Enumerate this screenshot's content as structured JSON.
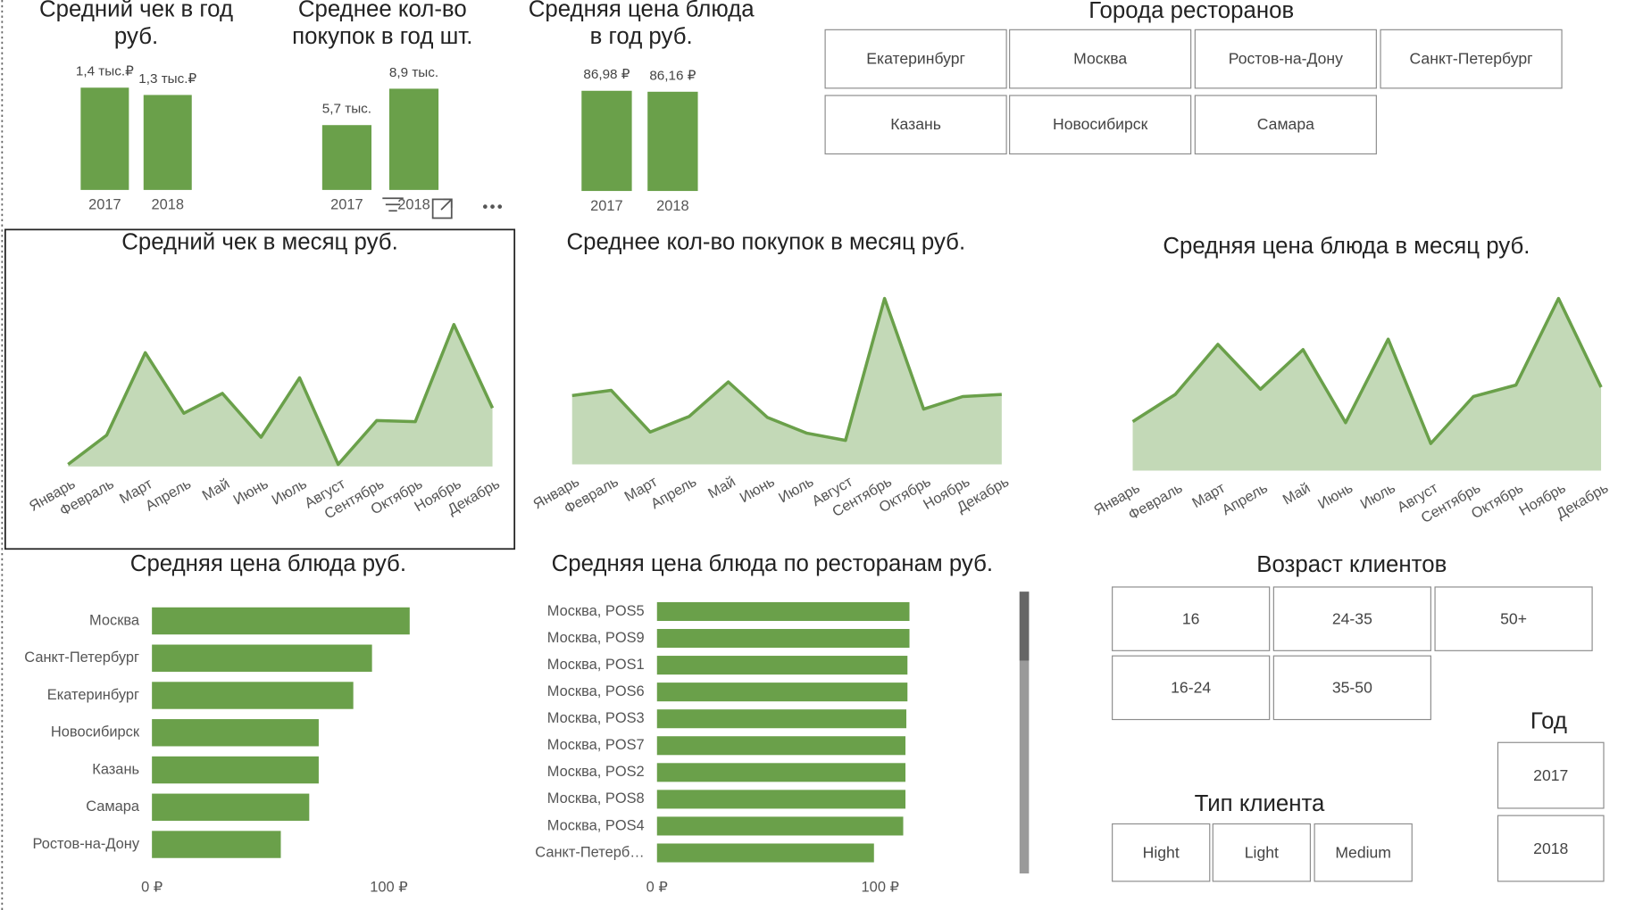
{
  "chart_data": [
    {
      "type": "bar",
      "title": "Средний чек в год руб.",
      "categories": [
        "2017",
        "2018"
      ],
      "values": [
        1.4,
        1.3
      ],
      "value_labels": [
        "1,4 тыс.₽",
        "1,3 тыс.₽"
      ],
      "color": "#6aa04a"
    },
    {
      "type": "bar",
      "title": "Среднее кол-во покупок в год шт.",
      "categories": [
        "2017",
        "2018"
      ],
      "values": [
        5.7,
        8.9
      ],
      "value_labels": [
        "5,7 тыс.",
        "8,9 тыс."
      ],
      "color": "#6aa04a"
    },
    {
      "type": "bar",
      "title": "Средняя цена блюда в год руб.",
      "categories": [
        "2017",
        "2018"
      ],
      "values": [
        86.98,
        86.16
      ],
      "value_labels": [
        "86,98 ₽",
        "86,16 ₽"
      ],
      "color": "#6aa04a"
    },
    {
      "type": "area",
      "title": "Средний чек в месяц руб.",
      "categories": [
        "Январь",
        "Февраль",
        "Март",
        "Апрель",
        "Май",
        "Июнь",
        "Июль",
        "Август",
        "Сентябрь",
        "Октябрь",
        "Ноябрь",
        "Декабрь"
      ],
      "values": [
        2,
        30,
        109,
        51,
        70,
        28,
        85,
        2,
        44,
        43,
        136,
        56
      ],
      "color": "#6aa04a"
    },
    {
      "type": "area",
      "title": "Среднее кол-во покупок в месяц руб.",
      "categories": [
        "Январь",
        "Февраль",
        "Март",
        "Апрель",
        "Май",
        "Июнь",
        "Июль",
        "Август",
        "Сентябрь",
        "Октябрь",
        "Ноябрь",
        "Декабрь"
      ],
      "values": [
        66,
        71,
        31,
        46,
        79,
        45,
        30,
        23,
        159,
        53,
        65,
        67
      ],
      "color": "#6aa04a"
    },
    {
      "type": "area",
      "title": "Средняя цена блюда в месяц руб.",
      "categories": [
        "Январь",
        "Февраль",
        "Март",
        "Апрель",
        "Май",
        "Июнь",
        "Июль",
        "Август",
        "Сентябрь",
        "Октябрь",
        "Ноябрь",
        "Декабрь"
      ],
      "values": [
        47,
        73,
        121,
        78,
        116,
        46,
        126,
        26,
        71,
        82,
        165,
        80
      ],
      "color": "#6aa04a"
    },
    {
      "type": "bar",
      "orientation": "horizontal",
      "title": "Средняя цена блюда руб.",
      "categories": [
        "Москва",
        "Санкт-Петербург",
        "Екатеринбург",
        "Новосибирск",
        "Казань",
        "Самара",
        "Ростов-на-Дону"
      ],
      "values": [
        108.8,
        92.9,
        85.0,
        70.4,
        70.4,
        66.4,
        54.4
      ],
      "color": "#6aa04a",
      "xlim": [
        0,
        115
      ],
      "xticks": [
        {
          "value": 0,
          "label": "0 ₽"
        },
        {
          "value": 100,
          "label": "100 ₽"
        }
      ]
    },
    {
      "type": "bar",
      "orientation": "horizontal",
      "title": "Средняя цена блюда по ресторанам руб.",
      "categories": [
        "Москва, POS5",
        "Москва, POS9",
        "Москва, POS1",
        "Москва, POS6",
        "Москва, POS3",
        "Москва, POS7",
        "Москва, POS2",
        "Москва, POS8",
        "Москва, POS4",
        "Санкт-Петерб…"
      ],
      "values": [
        113.1,
        113.1,
        112.2,
        112.2,
        111.7,
        111.3,
        111.3,
        111.3,
        110.3,
        97.2
      ],
      "color": "#6aa04a",
      "xlim": [
        0,
        115
      ],
      "xticks": [
        {
          "value": 0,
          "label": "0 ₽"
        },
        {
          "value": 100,
          "label": "100 ₽"
        }
      ]
    }
  ],
  "slicers": [
    {
      "title": "Города ресторанов",
      "items": [
        "Екатеринбург",
        "Москва",
        "Ростов-на-Дону",
        "Санкт-Петербург",
        "Казань",
        "Новосибирск",
        "Самара"
      ]
    },
    {
      "title": "Возраст клиентов",
      "items": [
        "16",
        "24-35",
        "50+",
        "16-24",
        "35-50"
      ]
    },
    {
      "title": "Тип клиента",
      "items": [
        "Hight",
        "Light",
        "Medium"
      ]
    },
    {
      "title": "Год",
      "items": [
        "2017",
        "2018"
      ]
    }
  ]
}
